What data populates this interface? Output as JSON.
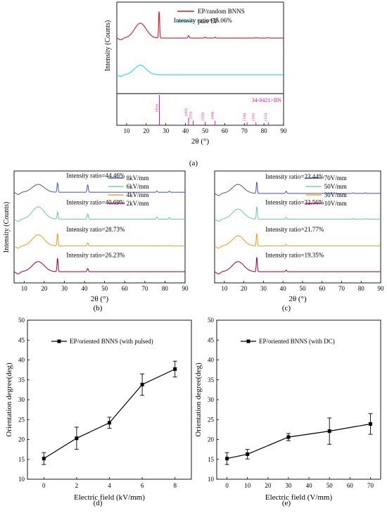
{
  "panel_labels": {
    "a": "(a)",
    "b": "(b)",
    "c": "(c)",
    "d": "(d)",
    "e": "(e)"
  },
  "chart_data": [
    {
      "id": "a",
      "type": "line",
      "xlabel": "2θ (°)",
      "ylabel": "Intensity (Counts)",
      "xlim": [
        5,
        90
      ],
      "xticks": [
        10,
        20,
        30,
        40,
        50,
        60,
        70,
        80,
        90
      ],
      "series": [
        {
          "name": "EP/random BNNS",
          "color": "#e8141c",
          "offset": 0.62,
          "hump": 0.17,
          "peak26": 0.33,
          "peak41": 0.03,
          "peak50": 0.012,
          "peak55": 0.01,
          "peak76": 0.006,
          "peak82": 0.005
        },
        {
          "name": "pure EP",
          "color": "#22d8e8",
          "offset": 0.2,
          "hump": 0.11,
          "peak26": 0.0,
          "peak41": 0.0,
          "peak50": 0.0,
          "peak55": 0.0,
          "peak76": 0.0,
          "peak82": 0.0
        }
      ],
      "annotations": [
        {
          "text": "Intensity ratio=15.06%",
          "x": 34,
          "y": 0.8
        }
      ],
      "reference": {
        "label": "34-0421>BN",
        "color": "#e8148c",
        "sticks": [
          {
            "x": 26.7,
            "h": 1.0,
            "label": "(002)"
          },
          {
            "x": 41.6,
            "h": 0.25,
            "label": "(100)"
          },
          {
            "x": 43.9,
            "h": 0.15,
            "label": "(101)"
          },
          {
            "x": 50.1,
            "h": 0.12,
            "label": "(102)"
          },
          {
            "x": 55.1,
            "h": 0.15,
            "label": "(004)"
          },
          {
            "x": 71.4,
            "h": 0.1,
            "label": "(104)"
          },
          {
            "x": 75.9,
            "h": 0.1,
            "label": "(110)"
          },
          {
            "x": 82.2,
            "h": 0.1,
            "label": "(112)"
          }
        ]
      }
    },
    {
      "id": "b",
      "type": "line",
      "xlabel": "2θ (°)",
      "ylabel": "Intensity (Counts)",
      "xlim": [
        5,
        90
      ],
      "xticks": [
        10,
        20,
        30,
        40,
        50,
        60,
        70,
        80,
        90
      ],
      "series": [
        {
          "name": "8kV/mm",
          "color": "#5467b2",
          "offset": 0.81,
          "hump": 0.07,
          "peak26": 0.09,
          "peak41": 0.07,
          "peak76": 0.012,
          "peak82": 0.01,
          "ratio": "Intensity ratio=44.46%"
        },
        {
          "name": "6kV/mm",
          "color": "#76cfa8",
          "offset": 0.57,
          "hump": 0.11,
          "peak26": 0.07,
          "peak41": 0.05,
          "peak76": 0.02,
          "peak82": 0.015,
          "ratio": "Intensity ratio=40.69%"
        },
        {
          "name": "4kV/mm",
          "color": "#f5a02c",
          "offset": 0.33,
          "hump": 0.1,
          "peak26": 0.12,
          "peak41": 0.03,
          "peak76": 0.005,
          "peak82": 0.005,
          "ratio": "Intensity ratio=28.73%"
        },
        {
          "name": "2kV/mm",
          "color": "#a5134d",
          "offset": 0.1,
          "hump": 0.09,
          "peak26": 0.13,
          "peak41": 0.03,
          "peak76": 0.0,
          "peak82": 0.0,
          "ratio": "Intensity ratio=26.23%"
        }
      ]
    },
    {
      "id": "c",
      "type": "line",
      "xlabel": "2θ (°)",
      "ylabel": "",
      "xlim": [
        5,
        90
      ],
      "xticks": [
        10,
        20,
        30,
        40,
        50,
        60,
        70,
        80,
        90
      ],
      "series": [
        {
          "name": "70V/mm",
          "color": "#5467b2",
          "offset": 0.8,
          "hump": 0.08,
          "peak26": 0.11,
          "peak41": 0.02,
          "peak76": 0.005,
          "peak82": 0.005,
          "ratio": "Intensity ratio=23.44%"
        },
        {
          "name": "50V/mm",
          "color": "#76cfa8",
          "offset": 0.57,
          "hump": 0.09,
          "peak26": 0.12,
          "peak41": 0.015,
          "peak76": 0.005,
          "peak82": 0.005,
          "ratio": "Intensity ratio=22.56%"
        },
        {
          "name": "30V/mm",
          "color": "#f5a02c",
          "offset": 0.33,
          "hump": 0.09,
          "peak26": 0.12,
          "peak41": 0.015,
          "peak76": 0.0,
          "peak82": 0.0,
          "ratio": "Intensity ratio=21.77%"
        },
        {
          "name": "10V/mm",
          "color": "#a5134d",
          "offset": 0.1,
          "hump": 0.09,
          "peak26": 0.14,
          "peak41": 0.015,
          "peak76": 0.0,
          "peak82": 0.0,
          "ratio": "Intensity ratio=19.35%"
        }
      ]
    },
    {
      "id": "d",
      "type": "line",
      "xlabel": "Electric field (kV/mm)",
      "ylabel": "Orientation degree(deg)",
      "xlim": [
        -1,
        9
      ],
      "ylim": [
        10,
        50
      ],
      "xticks": [
        0,
        2,
        4,
        6,
        8
      ],
      "yticks": [
        10,
        15,
        20,
        25,
        30,
        35,
        40,
        45,
        50
      ],
      "series": [
        {
          "name": "EP/oriented BNNS (with pulsed)",
          "x": [
            0,
            2,
            4,
            6,
            8
          ],
          "y": [
            15.2,
            20.3,
            24.2,
            33.8,
            37.7
          ],
          "err": [
            1.5,
            2.8,
            1.4,
            2.7,
            2.0
          ]
        }
      ]
    },
    {
      "id": "e",
      "type": "line",
      "xlabel": "Electric field (V/mm)",
      "ylabel": "Orientation degree(deg)",
      "xlim": [
        -5,
        75
      ],
      "ylim": [
        10,
        50
      ],
      "xticks": [
        0,
        10,
        20,
        30,
        40,
        50,
        60,
        70
      ],
      "yticks": [
        10,
        15,
        20,
        25,
        30,
        35,
        40,
        45,
        50
      ],
      "series": [
        {
          "name": "EP/oriented BNNS (with DC)",
          "x": [
            0,
            10,
            30,
            50,
            70
          ],
          "y": [
            15.2,
            16.3,
            20.6,
            22.1,
            23.9
          ],
          "err": [
            1.5,
            1.2,
            0.9,
            3.3,
            2.6
          ]
        }
      ]
    }
  ]
}
